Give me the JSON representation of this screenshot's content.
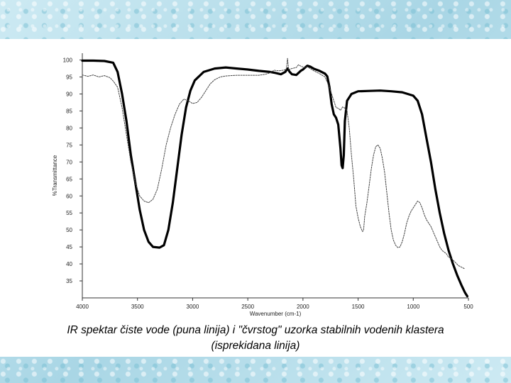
{
  "caption": {
    "line1": "IR spektar čiste vode (puna linija) i \"čvrstog\" uzorka stabilnih vodenih klastera",
    "line2": "(isprekidana linija)"
  },
  "chart_data": {
    "type": "line",
    "xlabel": "Wavenumber (cm-1)",
    "ylabel": "%Transmittance",
    "xlim": [
      4000,
      500
    ],
    "ylim": [
      30,
      102
    ],
    "x_reversed": true,
    "x_ticks": [
      4000,
      3500,
      3000,
      2500,
      2000,
      1500,
      1000,
      500
    ],
    "y_ticks": [
      35,
      40,
      45,
      50,
      55,
      60,
      65,
      70,
      75,
      80,
      85,
      90,
      95,
      100
    ],
    "grid": false,
    "series": [
      {
        "style": "solid",
        "color": "#000000",
        "points": [
          [
            4000,
            99.8
          ],
          [
            3900,
            99.8
          ],
          [
            3800,
            99.7
          ],
          [
            3720,
            99.2
          ],
          [
            3680,
            96.5
          ],
          [
            3640,
            90
          ],
          [
            3600,
            82
          ],
          [
            3560,
            72
          ],
          [
            3520,
            64
          ],
          [
            3480,
            56
          ],
          [
            3440,
            50
          ],
          [
            3400,
            46.5
          ],
          [
            3360,
            45
          ],
          [
            3300,
            44.8
          ],
          [
            3260,
            45.5
          ],
          [
            3220,
            50
          ],
          [
            3180,
            58
          ],
          [
            3140,
            68
          ],
          [
            3100,
            78
          ],
          [
            3060,
            86
          ],
          [
            3020,
            91
          ],
          [
            2980,
            94
          ],
          [
            2900,
            96.5
          ],
          [
            2800,
            97.5
          ],
          [
            2700,
            97.8
          ],
          [
            2600,
            97.5
          ],
          [
            2500,
            97.2
          ],
          [
            2400,
            96.8
          ],
          [
            2300,
            96.5
          ],
          [
            2250,
            96.2
          ],
          [
            2200,
            95.8
          ],
          [
            2160,
            96.5
          ],
          [
            2140,
            97.5
          ],
          [
            2120,
            96.5
          ],
          [
            2100,
            95.8
          ],
          [
            2060,
            95.6
          ],
          [
            2020,
            96.8
          ],
          [
            2000,
            97.2
          ],
          [
            1980,
            97.8
          ],
          [
            1960,
            98.3
          ],
          [
            1930,
            98.0
          ],
          [
            1900,
            97.4
          ],
          [
            1850,
            96.8
          ],
          [
            1800,
            96.0
          ],
          [
            1780,
            95.2
          ],
          [
            1760,
            92
          ],
          [
            1740,
            87
          ],
          [
            1720,
            84
          ],
          [
            1700,
            83
          ],
          [
            1680,
            81
          ],
          [
            1660,
            74
          ],
          [
            1650,
            69
          ],
          [
            1640,
            68.2
          ],
          [
            1630,
            72
          ],
          [
            1620,
            82
          ],
          [
            1600,
            88
          ],
          [
            1560,
            90
          ],
          [
            1500,
            90.8
          ],
          [
            1400,
            90.9
          ],
          [
            1300,
            91
          ],
          [
            1200,
            90.8
          ],
          [
            1100,
            90.5
          ],
          [
            1000,
            89.5
          ],
          [
            960,
            88
          ],
          [
            920,
            84
          ],
          [
            880,
            77
          ],
          [
            840,
            70
          ],
          [
            800,
            62
          ],
          [
            760,
            55
          ],
          [
            720,
            49
          ],
          [
            680,
            44
          ],
          [
            640,
            40
          ],
          [
            600,
            36.5
          ],
          [
            560,
            33.5
          ],
          [
            530,
            31.5
          ],
          [
            510,
            30.5
          ]
        ]
      },
      {
        "style": "dashed",
        "color": "#444444",
        "points": [
          [
            4000,
            95.6
          ],
          [
            3950,
            95.2
          ],
          [
            3900,
            95.6
          ],
          [
            3850,
            95.0
          ],
          [
            3800,
            95.4
          ],
          [
            3750,
            94.8
          ],
          [
            3720,
            93.8
          ],
          [
            3680,
            92
          ],
          [
            3640,
            86
          ],
          [
            3600,
            78
          ],
          [
            3560,
            70
          ],
          [
            3520,
            64
          ],
          [
            3480,
            60
          ],
          [
            3440,
            58.5
          ],
          [
            3400,
            58
          ],
          [
            3360,
            59
          ],
          [
            3320,
            62
          ],
          [
            3280,
            68
          ],
          [
            3240,
            75
          ],
          [
            3200,
            80
          ],
          [
            3160,
            84
          ],
          [
            3120,
            87
          ],
          [
            3080,
            88.5
          ],
          [
            3040,
            88
          ],
          [
            3000,
            87.2
          ],
          [
            2960,
            87.5
          ],
          [
            2920,
            89
          ],
          [
            2880,
            91
          ],
          [
            2840,
            93
          ],
          [
            2800,
            94.2
          ],
          [
            2750,
            95.0
          ],
          [
            2700,
            95.3
          ],
          [
            2600,
            95.5
          ],
          [
            2500,
            95.5
          ],
          [
            2400,
            95.5
          ],
          [
            2340,
            95.8
          ],
          [
            2300,
            96.2
          ],
          [
            2260,
            97.0
          ],
          [
            2220,
            96.8
          ],
          [
            2180,
            97.0
          ],
          [
            2150,
            97.2
          ],
          [
            2140,
            100.5
          ],
          [
            2130,
            97.2
          ],
          [
            2100,
            97.5
          ],
          [
            2060,
            97.8
          ],
          [
            2040,
            98.6
          ],
          [
            2020,
            98.2
          ],
          [
            1990,
            97.8
          ],
          [
            1960,
            98.0
          ],
          [
            1900,
            96.8
          ],
          [
            1850,
            96.0
          ],
          [
            1800,
            95.0
          ],
          [
            1760,
            92
          ],
          [
            1730,
            89
          ],
          [
            1700,
            86
          ],
          [
            1680,
            85.8
          ],
          [
            1660,
            85.2
          ],
          [
            1640,
            86.2
          ],
          [
            1620,
            85.8
          ],
          [
            1600,
            85
          ],
          [
            1580,
            80
          ],
          [
            1560,
            72
          ],
          [
            1540,
            65
          ],
          [
            1520,
            57
          ],
          [
            1500,
            53.5
          ],
          [
            1480,
            51
          ],
          [
            1460,
            49.5
          ],
          [
            1450,
            50
          ],
          [
            1440,
            54
          ],
          [
            1420,
            58
          ],
          [
            1400,
            63
          ],
          [
            1380,
            68
          ],
          [
            1360,
            72
          ],
          [
            1340,
            74.5
          ],
          [
            1320,
            75
          ],
          [
            1300,
            74
          ],
          [
            1280,
            71
          ],
          [
            1260,
            67
          ],
          [
            1240,
            61
          ],
          [
            1220,
            55
          ],
          [
            1200,
            50
          ],
          [
            1180,
            47
          ],
          [
            1160,
            45.5
          ],
          [
            1140,
            44.8
          ],
          [
            1120,
            45
          ],
          [
            1100,
            46.5
          ],
          [
            1080,
            49
          ],
          [
            1060,
            52
          ],
          [
            1040,
            54
          ],
          [
            1020,
            55.5
          ],
          [
            1000,
            56.5
          ],
          [
            980,
            57.5
          ],
          [
            960,
            58.5
          ],
          [
            940,
            58
          ],
          [
            920,
            56.5
          ],
          [
            900,
            54.5
          ],
          [
            880,
            53
          ],
          [
            860,
            52
          ],
          [
            840,
            51
          ],
          [
            820,
            49.5
          ],
          [
            800,
            48
          ],
          [
            780,
            46.5
          ],
          [
            760,
            45
          ],
          [
            740,
            44
          ],
          [
            720,
            43.5
          ],
          [
            700,
            43
          ],
          [
            680,
            42
          ],
          [
            650,
            41.5
          ],
          [
            620,
            40.5
          ],
          [
            590,
            39.5
          ],
          [
            560,
            39
          ],
          [
            530,
            38.5
          ]
        ]
      }
    ]
  }
}
